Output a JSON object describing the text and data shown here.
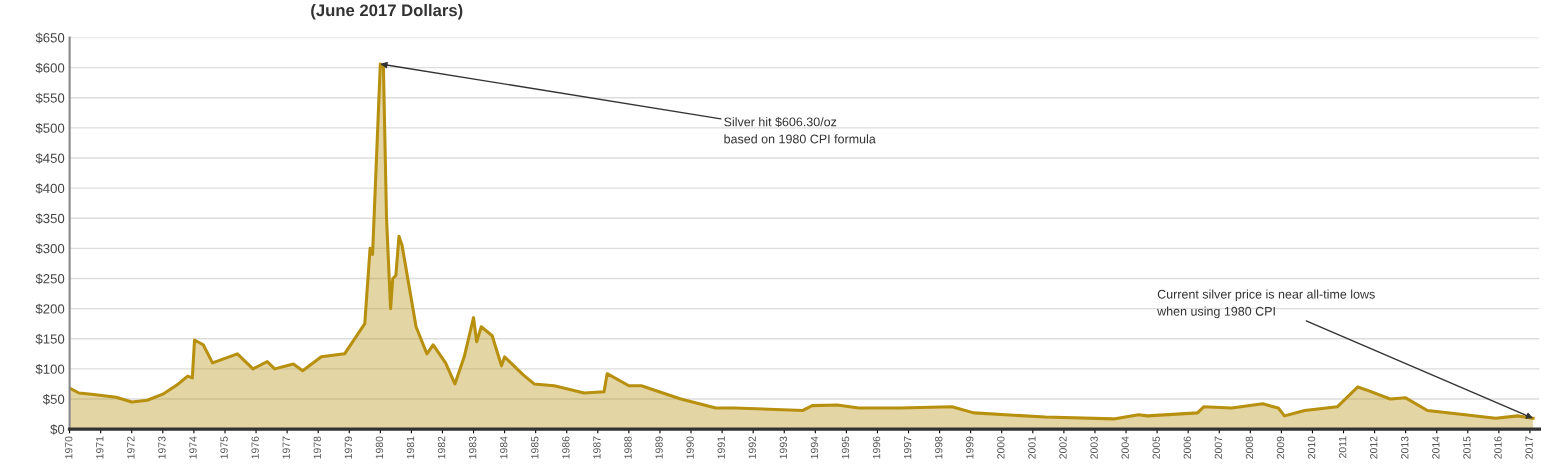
{
  "chart_data": {
    "type": "area",
    "subtitle": "(June 2017 Dollars)",
    "x": [
      1970.0,
      1970.3,
      1970.7,
      1971.5,
      1972.0,
      1972.5,
      1973.0,
      1973.5,
      1973.8,
      1973.95,
      1974.02,
      1974.3,
      1974.6,
      1975.4,
      1975.9,
      1976.36,
      1976.6,
      1977.2,
      1977.5,
      1978.1,
      1978.85,
      1979.5,
      1979.67,
      1979.75,
      1980.0,
      1980.1,
      1980.2,
      1980.33,
      1980.4,
      1980.5,
      1980.6,
      1980.7,
      1981.15,
      1981.5,
      1981.7,
      1982.1,
      1982.4,
      1982.7,
      1983.0,
      1983.1,
      1983.25,
      1983.6,
      1983.9,
      1984.0,
      1984.6,
      1984.95,
      1985.6,
      1986.56,
      1987.2,
      1987.3,
      1988.0,
      1988.4,
      1989.67,
      1990.8,
      1991.4,
      1993.6,
      1993.9,
      1994.7,
      1995.4,
      1996.7,
      1998.4,
      1999.1,
      2001.4,
      2003.6,
      2004.4,
      2004.7,
      2006.3,
      2006.5,
      2007.4,
      2008.4,
      2008.9,
      2009.1,
      2009.75,
      2010.8,
      2011.46,
      2011.8,
      2012.5,
      2013.0,
      2013.7,
      2014.7,
      2015.9,
      2016.6,
      2017.1
    ],
    "values": [
      68,
      60,
      58,
      53,
      45,
      48,
      58,
      75,
      88,
      85,
      148,
      140,
      110,
      125,
      100,
      112,
      100,
      108,
      97,
      120,
      125,
      175,
      300,
      290,
      606,
      600,
      350,
      200,
      250,
      255,
      320,
      305,
      170,
      125,
      140,
      110,
      75,
      120,
      185,
      145,
      170,
      155,
      105,
      120,
      90,
      75,
      72,
      60,
      62,
      92,
      72,
      72,
      50,
      35,
      35,
      31,
      39,
      40,
      35,
      35,
      37,
      27,
      20,
      17,
      24,
      22,
      27,
      37,
      35,
      42,
      35,
      22,
      31,
      37,
      70,
      64,
      50,
      52,
      31,
      25,
      18,
      22,
      18
    ],
    "color": "#b8900f",
    "xlim": [
      1970,
      2017.3
    ],
    "xticks": [
      1970,
      1971,
      1972,
      1973,
      1974,
      1975,
      1976,
      1977,
      1978,
      1979,
      1980,
      1981,
      1982,
      1983,
      1984,
      1985,
      1986,
      1987,
      1988,
      1989,
      1990,
      1991,
      1992,
      1993,
      1994,
      1995,
      1996,
      1997,
      1998,
      1999,
      2000,
      2001,
      2002,
      2003,
      2004,
      2005,
      2006,
      2007,
      2008,
      2009,
      2010,
      2011,
      2012,
      2013,
      2014,
      2015,
      2016,
      2017
    ],
    "ylim": [
      0,
      650
    ],
    "yticks": [
      {
        "value": 0,
        "label": "$0"
      },
      {
        "value": 50,
        "label": "$50"
      },
      {
        "value": 100,
        "label": "$100"
      },
      {
        "value": 150,
        "label": "$150"
      },
      {
        "value": 200,
        "label": "$200"
      },
      {
        "value": 250,
        "label": "$250"
      },
      {
        "value": 300,
        "label": "$300"
      },
      {
        "value": 350,
        "label": "$350"
      },
      {
        "value": 400,
        "label": "$400"
      },
      {
        "value": 450,
        "label": "$450"
      },
      {
        "value": 500,
        "label": "$500"
      },
      {
        "value": 550,
        "label": "$550"
      },
      {
        "value": 600,
        "label": "$600"
      },
      {
        "value": 650,
        "label": "$650"
      }
    ],
    "grid": "y",
    "marker": "none",
    "line_style": "solid",
    "annotations": [
      {
        "text": "Silver hit $606.30/oz\nbased on 1980 CPI formula",
        "x": 1980,
        "y": 606
      },
      {
        "text": "Current silver price is near all-time lows\nwhen using 1980 CPI",
        "x": 2017.1,
        "y": 18
      }
    ]
  }
}
